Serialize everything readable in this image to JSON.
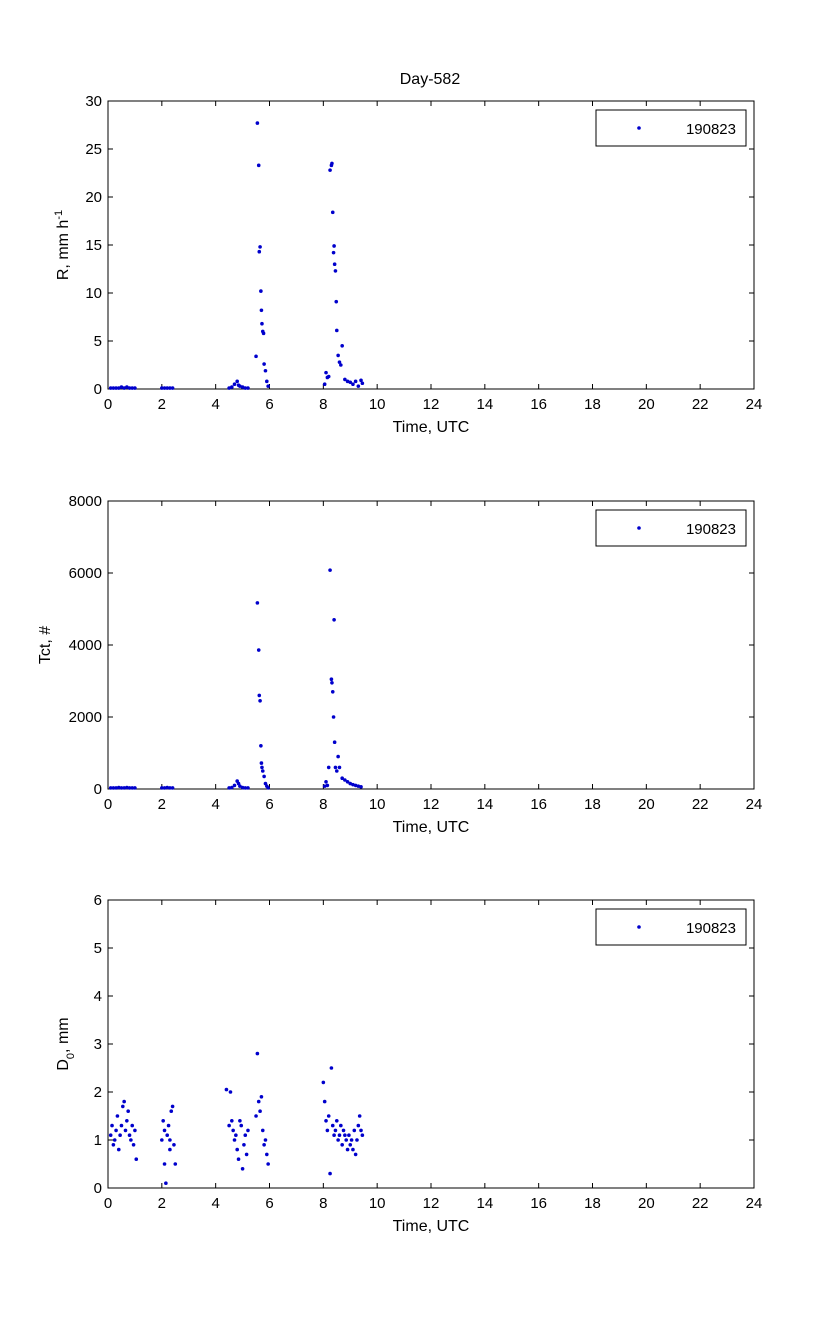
{
  "figure_title": "Day-582",
  "chart_data": [
    {
      "type": "scatter",
      "title": "Day-582",
      "xlabel": "Time, UTC",
      "ylabel": "R, mm h",
      "ylabel_sup": "-1",
      "xlim": [
        0,
        24
      ],
      "ylim": [
        0,
        30
      ],
      "xticks": [
        0,
        2,
        4,
        6,
        8,
        10,
        12,
        14,
        16,
        18,
        20,
        22,
        24
      ],
      "yticks": [
        0,
        5,
        10,
        15,
        20,
        25,
        30
      ],
      "grid": false,
      "legend_position": "top-right",
      "series": [
        {
          "name": "190823",
          "color": "#0000cc",
          "x": [
            0.1,
            0.2,
            0.3,
            0.4,
            0.5,
            0.6,
            0.7,
            0.8,
            0.9,
            1.0,
            2.0,
            2.1,
            2.2,
            2.3,
            2.4,
            4.5,
            4.6,
            4.7,
            4.8,
            4.85,
            4.9,
            5.0,
            5.1,
            5.2,
            5.5,
            5.55,
            5.6,
            5.62,
            5.65,
            5.68,
            5.7,
            5.72,
            5.75,
            5.78,
            5.8,
            5.85,
            5.9,
            5.95,
            8.05,
            8.1,
            8.15,
            8.2,
            8.25,
            8.3,
            8.32,
            8.35,
            8.38,
            8.4,
            8.42,
            8.45,
            8.48,
            8.5,
            8.55,
            8.6,
            8.65,
            8.7,
            8.8,
            8.9,
            9.0,
            9.1,
            9.2,
            9.3,
            9.4,
            9.45
          ],
          "y": [
            0.1,
            0.1,
            0.1,
            0.1,
            0.2,
            0.1,
            0.2,
            0.1,
            0.1,
            0.1,
            0.1,
            0.1,
            0.1,
            0.1,
            0.1,
            0.1,
            0.2,
            0.5,
            0.8,
            0.4,
            0.3,
            0.2,
            0.1,
            0.1,
            3.4,
            27.7,
            23.3,
            14.3,
            14.8,
            10.2,
            8.2,
            6.8,
            6.0,
            5.8,
            2.6,
            1.9,
            0.8,
            0.3,
            0.5,
            1.7,
            1.2,
            1.3,
            22.8,
            23.3,
            23.5,
            18.4,
            14.2,
            14.9,
            13.0,
            12.3,
            9.1,
            6.1,
            3.5,
            2.8,
            2.5,
            4.5,
            1.0,
            0.8,
            0.7,
            0.5,
            0.8,
            0.3,
            0.9,
            0.6
          ]
        }
      ]
    },
    {
      "type": "scatter",
      "xlabel": "Time, UTC",
      "ylabel": "Tct, #",
      "xlim": [
        0,
        24
      ],
      "ylim": [
        0,
        8000
      ],
      "xticks": [
        0,
        2,
        4,
        6,
        8,
        10,
        12,
        14,
        16,
        18,
        20,
        22,
        24
      ],
      "yticks": [
        0,
        2000,
        4000,
        6000,
        8000
      ],
      "grid": false,
      "legend_position": "top-right",
      "series": [
        {
          "name": "190823",
          "color": "#0000cc",
          "x": [
            0.1,
            0.2,
            0.3,
            0.4,
            0.5,
            0.6,
            0.7,
            0.8,
            0.9,
            1.0,
            2.0,
            2.1,
            2.2,
            2.3,
            2.4,
            4.5,
            4.6,
            4.7,
            4.8,
            4.85,
            4.9,
            5.0,
            5.1,
            5.2,
            5.55,
            5.6,
            5.62,
            5.65,
            5.68,
            5.7,
            5.72,
            5.75,
            5.8,
            5.85,
            5.9,
            5.95,
            8.05,
            8.1,
            8.15,
            8.2,
            8.25,
            8.3,
            8.32,
            8.35,
            8.38,
            8.4,
            8.42,
            8.45,
            8.5,
            8.55,
            8.6,
            8.7,
            8.8,
            8.9,
            9.0,
            9.1,
            9.2,
            9.3,
            9.4
          ],
          "y": [
            30,
            30,
            30,
            40,
            30,
            30,
            40,
            30,
            30,
            30,
            30,
            30,
            40,
            30,
            30,
            30,
            40,
            100,
            220,
            150,
            80,
            40,
            30,
            30,
            5170,
            3860,
            2600,
            2450,
            1200,
            720,
            600,
            500,
            350,
            150,
            80,
            30,
            80,
            200,
            100,
            600,
            6080,
            3050,
            2950,
            2700,
            2000,
            4700,
            1300,
            600,
            500,
            900,
            600,
            300,
            250,
            200,
            150,
            120,
            100,
            80,
            60
          ]
        }
      ]
    },
    {
      "type": "scatter",
      "xlabel": "Time, UTC",
      "ylabel": "D",
      "ylabel_sub": "0",
      "ylabel_suffix": ", mm",
      "xlim": [
        0,
        24
      ],
      "ylim": [
        0,
        6
      ],
      "xticks": [
        0,
        2,
        4,
        6,
        8,
        10,
        12,
        14,
        16,
        18,
        20,
        22,
        24
      ],
      "yticks": [
        0,
        1,
        2,
        3,
        4,
        5,
        6
      ],
      "grid": false,
      "legend_position": "top-right",
      "series": [
        {
          "name": "190823",
          "color": "#0000cc",
          "x": [
            0.1,
            0.15,
            0.2,
            0.25,
            0.3,
            0.35,
            0.4,
            0.45,
            0.5,
            0.55,
            0.6,
            0.65,
            0.7,
            0.75,
            0.8,
            0.85,
            0.9,
            0.95,
            1.0,
            1.05,
            2.0,
            2.05,
            2.1,
            2.15,
            2.2,
            2.25,
            2.3,
            2.35,
            2.4,
            2.45,
            2.5,
            2.1,
            2.3,
            4.4,
            4.5,
            4.55,
            4.6,
            4.65,
            4.7,
            4.75,
            4.8,
            4.85,
            4.9,
            4.95,
            5.0,
            5.05,
            5.1,
            5.15,
            5.2,
            5.5,
            5.55,
            5.6,
            5.65,
            5.7,
            5.75,
            5.8,
            5.85,
            5.9,
            5.95,
            8.0,
            8.05,
            8.1,
            8.15,
            8.2,
            8.25,
            8.3,
            8.35,
            8.4,
            8.45,
            8.5,
            8.55,
            8.6,
            8.65,
            8.7,
            8.75,
            8.8,
            8.85,
            8.9,
            8.95,
            9.0,
            9.05,
            9.1,
            9.15,
            9.2,
            9.25,
            9.3,
            9.35,
            9.4,
            9.45
          ],
          "y": [
            1.1,
            1.3,
            0.9,
            1.0,
            1.2,
            1.5,
            0.8,
            1.1,
            1.3,
            1.7,
            1.8,
            1.2,
            1.4,
            1.6,
            1.1,
            1.0,
            1.3,
            0.9,
            1.2,
            0.6,
            1.0,
            1.4,
            0.5,
            0.1,
            1.1,
            1.3,
            0.8,
            1.6,
            1.7,
            0.9,
            0.5,
            1.2,
            1.0,
            2.05,
            1.3,
            2.0,
            1.4,
            1.2,
            1.0,
            1.1,
            0.8,
            0.6,
            1.4,
            1.3,
            0.4,
            0.9,
            1.1,
            0.7,
            1.2,
            1.5,
            2.8,
            1.8,
            1.6,
            1.9,
            1.2,
            0.9,
            1.0,
            0.7,
            0.5,
            2.2,
            1.8,
            1.4,
            1.2,
            1.5,
            0.3,
            2.5,
            1.3,
            1.1,
            1.2,
            1.4,
            1.0,
            1.1,
            1.3,
            0.9,
            1.2,
            1.1,
            1.0,
            0.8,
            1.1,
            0.9,
            1.0,
            0.8,
            1.2,
            0.7,
            1.0,
            1.3,
            1.5,
            1.2,
            1.1
          ]
        }
      ]
    }
  ]
}
